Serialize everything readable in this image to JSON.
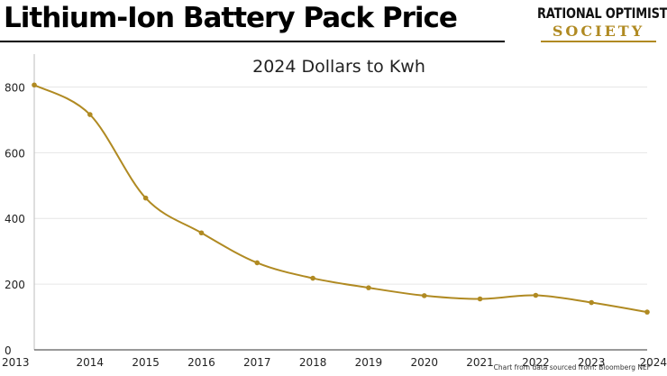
{
  "header": {
    "title": "Lithium-Ion Battery Pack Price"
  },
  "logo": {
    "line1": "RATIONAL OPTIMIST",
    "line2": "SOCIETY"
  },
  "source_note": "Chart from data sourced from: Bloomberg NEF",
  "colors": {
    "accent": "#b08a22",
    "text": "#111111",
    "grid": "#e6e6e6"
  },
  "chart_data": {
    "type": "line",
    "title": "2024 Dollars to Kwh",
    "xlabel": "",
    "ylabel": "",
    "categories": [
      "2013",
      "2014",
      "2015",
      "2016",
      "2017",
      "2018",
      "2019",
      "2020",
      "2021",
      "2022",
      "2023",
      "2024"
    ],
    "series": [
      {
        "name": "Lithium-Ion Battery Pack Price",
        "values": [
          806,
          716,
          462,
          356,
          265,
          218,
          189,
          165,
          155,
          166,
          144,
          115
        ]
      }
    ],
    "yticks": [
      0,
      200,
      400,
      600,
      800
    ],
    "ylim": [
      0,
      900
    ],
    "grid": true,
    "legend": "none"
  }
}
